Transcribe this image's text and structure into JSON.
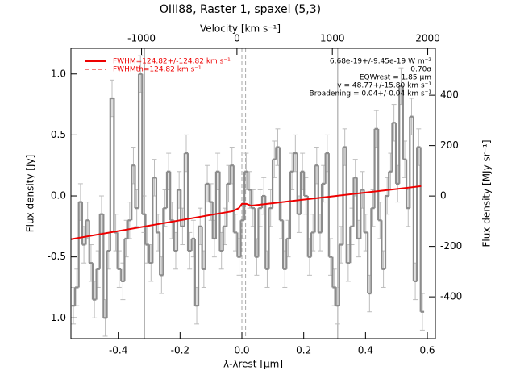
{
  "chart_data": {
    "type": "step",
    "title": "OIII88, Raster 1, spaxel (5,3)",
    "x_label": "λ-λrest [μm]",
    "y_label": "Flux density [Jy]",
    "x2_label": "Velocity [km s⁻¹]",
    "y2_label": "Flux density [MJy sr⁻¹]",
    "xlim": [
      -0.553,
      0.626
    ],
    "ylim": [
      -1.17,
      1.21
    ],
    "x2lim": [
      -1740,
      2080
    ],
    "y2lim": [
      -566,
      586
    ],
    "xticks": [
      -0.4,
      -0.2,
      {
        "value": 0,
        "label": "0.0"
      },
      0.2,
      0.4,
      0.6
    ],
    "yticks": [
      {
        "value": -1,
        "label": "-1.0"
      },
      -0.5,
      {
        "value": 0,
        "label": "0.0"
      },
      0.5,
      {
        "value": 1,
        "label": "1.0"
      }
    ],
    "x2ticks": [
      -1000,
      0,
      1000,
      2000
    ],
    "y2ticks": [
      -400,
      -200,
      0,
      200,
      400
    ],
    "vlines": [
      -0.315,
      0.31
    ],
    "dashed_vlines": [
      0,
      0.012
    ],
    "series": [
      {
        "name": "spectrum",
        "color": "#8c8c8c",
        "error": 0.15,
        "error_color": "#bdbdbd",
        "x": [
          -0.545,
          -0.534,
          -0.522,
          -0.511,
          -0.499,
          -0.488,
          -0.477,
          -0.465,
          -0.454,
          -0.442,
          -0.431,
          -0.42,
          -0.408,
          -0.397,
          -0.385,
          -0.374,
          -0.363,
          -0.351,
          -0.34,
          -0.328,
          -0.317,
          -0.306,
          -0.294,
          -0.283,
          -0.271,
          -0.26,
          -0.249,
          -0.237,
          -0.226,
          -0.214,
          -0.203,
          -0.192,
          -0.18,
          -0.169,
          -0.157,
          -0.146,
          -0.135,
          -0.123,
          -0.112,
          -0.1,
          -0.089,
          -0.078,
          -0.066,
          -0.055,
          -0.043,
          -0.032,
          -0.021,
          -0.009,
          0.002,
          0.014,
          0.025,
          0.036,
          0.048,
          0.059,
          0.071,
          0.082,
          0.093,
          0.105,
          0.116,
          0.128,
          0.139,
          0.15,
          0.162,
          0.173,
          0.185,
          0.196,
          0.207,
          0.219,
          0.23,
          0.242,
          0.253,
          0.264,
          0.276,
          0.287,
          0.299,
          0.31,
          0.321,
          0.333,
          0.344,
          0.356,
          0.367,
          0.378,
          0.39,
          0.401,
          0.413,
          0.424,
          0.435,
          0.447,
          0.458,
          0.47,
          0.481,
          0.492,
          0.504,
          0.515,
          0.527,
          0.538,
          0.549,
          0.561,
          0.572,
          0.584
        ],
        "values": [
          -0.9,
          -0.75,
          -0.05,
          -0.4,
          -0.2,
          -0.55,
          -0.85,
          -0.6,
          -0.15,
          -1.0,
          -0.45,
          0.8,
          -0.3,
          -0.6,
          -0.7,
          -0.35,
          -0.2,
          0.25,
          -0.1,
          1.0,
          -0.15,
          -0.4,
          -0.55,
          0.15,
          -0.3,
          -0.65,
          -0.1,
          0.2,
          -0.2,
          -0.45,
          0.05,
          -0.25,
          0.35,
          -0.45,
          -0.35,
          -0.9,
          -0.25,
          -0.6,
          0.1,
          -0.05,
          -0.35,
          0.2,
          -0.45,
          -0.25,
          0.1,
          0.25,
          -0.3,
          -0.5,
          -0.2,
          0.2,
          0.05,
          -0.1,
          -0.5,
          -0.1,
          0.0,
          -0.6,
          -0.1,
          0.3,
          0.4,
          -0.2,
          -0.6,
          -0.35,
          0.2,
          0.35,
          -0.15,
          0.2,
          0.0,
          -0.5,
          -0.3,
          0.25,
          -0.3,
          0.1,
          0.35,
          -0.5,
          -0.75,
          -0.9,
          -0.4,
          0.4,
          -0.55,
          -0.25,
          0.15,
          -0.35,
          0.05,
          -0.3,
          -0.8,
          -0.1,
          0.55,
          -0.2,
          -0.6,
          0.0,
          0.2,
          0.6,
          0.1,
          0.9,
          0.3,
          -0.1,
          0.65,
          -0.7,
          0.4,
          -0.95
        ]
      },
      {
        "name": "fit",
        "color": "#ee0000",
        "x": [
          -0.553,
          -0.03,
          -0.01,
          0.0,
          0.015,
          0.03,
          0.58
        ],
        "values": [
          -0.355,
          -0.125,
          -0.1,
          -0.065,
          -0.065,
          -0.08,
          0.08
        ]
      }
    ],
    "legend": [
      "FWHM=124.82+/-124.82 km s⁻¹",
      "FWHMth=124.82 km s⁻¹"
    ],
    "annotations": [
      "6.68e-19+/-9.45e-19 W m⁻²",
      "0.70σ",
      "EQWrest = 1.85 μm",
      "v = 48.77+/-15.80 km s⁻¹",
      "Broadening = 0.04+/-0.04 km s⁻¹"
    ]
  }
}
